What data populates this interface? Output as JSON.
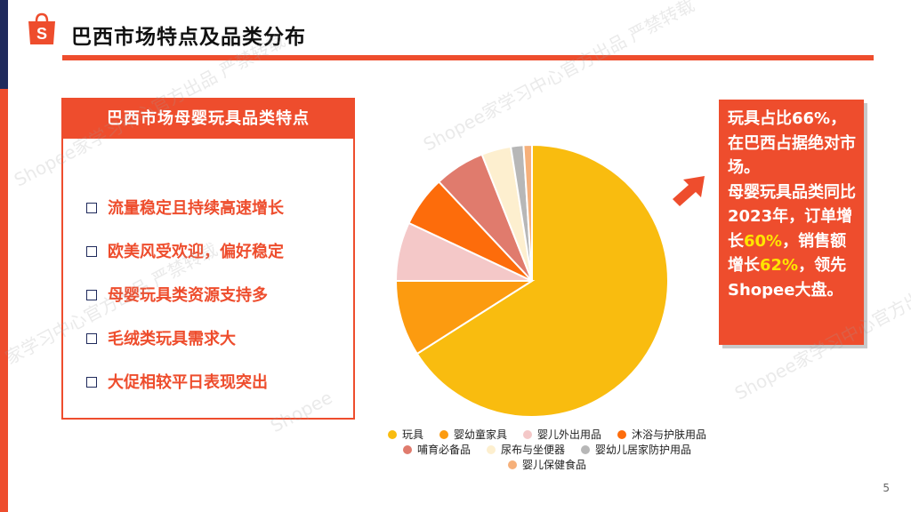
{
  "header": {
    "title": "巴西市场特点及品类分布"
  },
  "panel": {
    "title": "巴西市场母婴玩具品类特点",
    "items": [
      "流量稳定且持续高速增长",
      "欧美风受欢迎，偏好稳定",
      "母婴玩具类资源支持多",
      "毛绒类玩具需求大",
      "大促相较平日表现突出"
    ]
  },
  "callout": {
    "p1": "玩具占比66%，在巴西占据绝对市场。",
    "p2": "母婴玩具品类同比2023年，订单增长",
    "h1": "60%",
    "p3": "，销售额增长",
    "h2": "62%",
    "p4": "，领先Shopee大盘。"
  },
  "watermarks": [
    "Shopee家学习中心官方出品 严禁转载",
    "Shopee家学习中心官方出品 严禁转载",
    "家学习中心官方出品 严禁转载",
    "Shopee家学习中心官方出品 严禁转载",
    "Shopee"
  ],
  "page_number": "5",
  "colors": {
    "brand": "#ee4d2d",
    "navy": "#1f2a5c",
    "highlight": "#ffe500"
  },
  "icons": {
    "logo": "shopee-bag-icon",
    "bullet": "checkbox-icon",
    "arrow": "arrow-up-right-icon"
  },
  "chart_data": {
    "type": "pie",
    "title": "",
    "labels": [
      "玩具",
      "婴幼童家具",
      "婴儿外出用品",
      "沐浴与护肤用品",
      "哺育必备品",
      "尿布与坐便器",
      "婴幼儿居家防护用品",
      "婴儿保健食品"
    ],
    "values": [
      66,
      9,
      7,
      6,
      6,
      3.5,
      1.5,
      1
    ],
    "colors": [
      "#f9bc0f",
      "#fc9b10",
      "#f4c8c8",
      "#fd6c0b",
      "#e07b6d",
      "#fdefcf",
      "#b7b7b7",
      "#f6b07a"
    ],
    "legend": "bottom",
    "legend_rows": [
      [
        0,
        1,
        2,
        3
      ],
      [
        4,
        5,
        6
      ],
      [
        7
      ]
    ]
  }
}
